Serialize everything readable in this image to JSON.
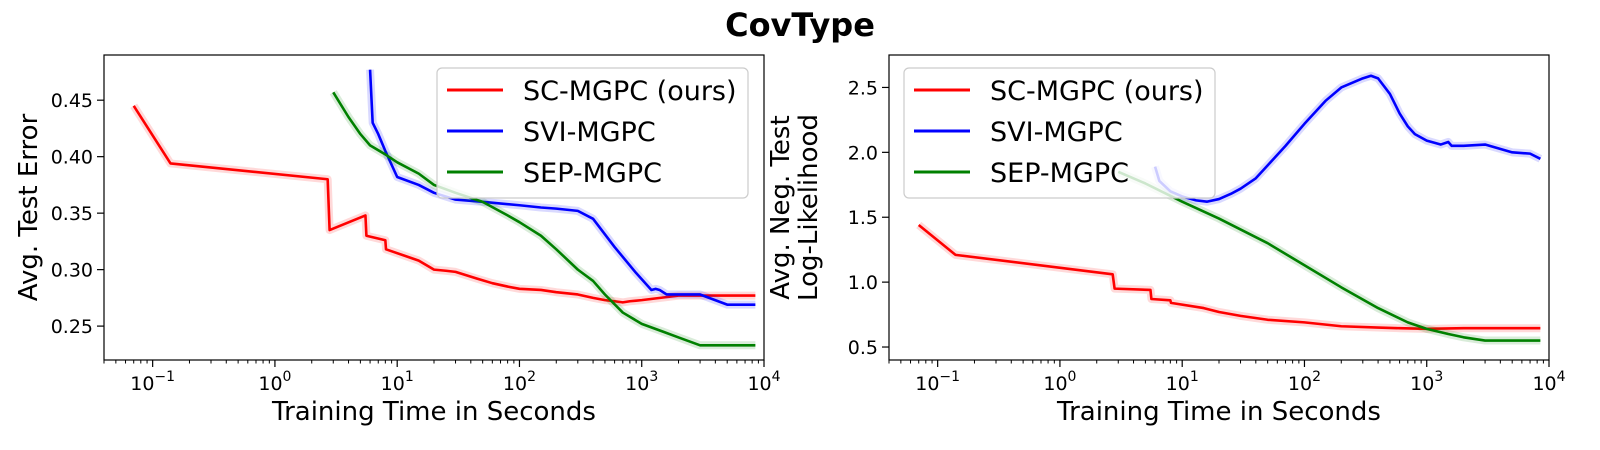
{
  "figure": {
    "title": "CovType"
  },
  "chart_data": [
    {
      "type": "line",
      "title": "",
      "xlabel": "Training Time in Seconds",
      "ylabel": "Avg. Test Error",
      "xscale": "log",
      "xlim": [
        0.04,
        10000
      ],
      "ylim": [
        0.22,
        0.49
      ],
      "xticks": [
        0.1,
        1,
        10,
        100,
        1000,
        10000
      ],
      "xtick_labels": [
        {
          "base": "10",
          "exp": "−1"
        },
        {
          "base": "10",
          "exp": "0"
        },
        {
          "base": "10",
          "exp": "1"
        },
        {
          "base": "10",
          "exp": "2"
        },
        {
          "base": "10",
          "exp": "3"
        },
        {
          "base": "10",
          "exp": "4"
        }
      ],
      "yticks": [
        0.25,
        0.3,
        0.35,
        0.4,
        0.45
      ],
      "ytick_labels": [
        "0.25",
        "0.30",
        "0.35",
        "0.40",
        "0.45"
      ],
      "legend_position": "top-right",
      "series": [
        {
          "name": "SC-MGPC (ours)",
          "color": "#ff0000",
          "x": [
            0.07,
            0.14,
            2.7,
            2.8,
            5.5,
            5.6,
            8.0,
            8.1,
            15,
            20,
            25,
            30,
            45,
            60,
            80,
            100,
            150,
            200,
            300,
            400,
            500,
            600,
            700,
            800,
            1000,
            2000,
            5000,
            8500
          ],
          "y": [
            0.445,
            0.394,
            0.38,
            0.335,
            0.348,
            0.33,
            0.326,
            0.318,
            0.308,
            0.3,
            0.299,
            0.298,
            0.292,
            0.288,
            0.285,
            0.283,
            0.282,
            0.28,
            0.278,
            0.275,
            0.273,
            0.272,
            0.271,
            0.272,
            0.273,
            0.277,
            0.277,
            0.277
          ]
        },
        {
          "name": "SVI-MGPC",
          "color": "#0000ff",
          "x": [
            6.0,
            6.3,
            7.0,
            8.0,
            10,
            15,
            20,
            30,
            50,
            100,
            150,
            200,
            300,
            400,
            600,
            900,
            1200,
            1300,
            1400,
            1600,
            3000,
            5000,
            8500
          ],
          "y": [
            0.477,
            0.43,
            0.42,
            0.405,
            0.382,
            0.375,
            0.368,
            0.362,
            0.36,
            0.357,
            0.355,
            0.354,
            0.352,
            0.345,
            0.32,
            0.297,
            0.282,
            0.283,
            0.282,
            0.278,
            0.278,
            0.269,
            0.269
          ]
        },
        {
          "name": "SEP-MGPC",
          "color": "#008000",
          "x": [
            3.0,
            4.0,
            5.0,
            6.0,
            8.0,
            10,
            15,
            20,
            30,
            50,
            80,
            100,
            150,
            200,
            300,
            400,
            500,
            700,
            1000,
            1500,
            2000,
            3000,
            5000,
            8500
          ],
          "y": [
            0.457,
            0.435,
            0.42,
            0.41,
            0.402,
            0.395,
            0.385,
            0.375,
            0.368,
            0.36,
            0.348,
            0.342,
            0.33,
            0.318,
            0.3,
            0.29,
            0.278,
            0.262,
            0.252,
            0.245,
            0.24,
            0.233,
            0.233,
            0.233
          ]
        }
      ]
    },
    {
      "type": "line",
      "title": "",
      "xlabel": "Training Time in Seconds",
      "ylabel_lines": [
        "Avg. Neg. Test",
        "Log-Likelihood"
      ],
      "xscale": "log",
      "xlim": [
        0.04,
        10000
      ],
      "ylim": [
        0.4,
        2.75
      ],
      "xticks": [
        0.1,
        1,
        10,
        100,
        1000,
        10000
      ],
      "xtick_labels": [
        {
          "base": "10",
          "exp": "−1"
        },
        {
          "base": "10",
          "exp": "0"
        },
        {
          "base": "10",
          "exp": "1"
        },
        {
          "base": "10",
          "exp": "2"
        },
        {
          "base": "10",
          "exp": "3"
        },
        {
          "base": "10",
          "exp": "4"
        }
      ],
      "yticks": [
        0.5,
        1.0,
        1.5,
        2.0,
        2.5
      ],
      "ytick_labels": [
        "0.5",
        "1.0",
        "1.5",
        "2.0",
        "2.5"
      ],
      "legend_position": "top-left",
      "series": [
        {
          "name": "SC-MGPC (ours)",
          "color": "#ff0000",
          "x": [
            0.07,
            0.14,
            2.7,
            2.8,
            5.5,
            5.6,
            8.0,
            8.1,
            15,
            20,
            30,
            50,
            100,
            200,
            400,
            600,
            1000,
            2000,
            5000,
            8500
          ],
          "y": [
            1.44,
            1.21,
            1.06,
            0.95,
            0.94,
            0.87,
            0.86,
            0.84,
            0.8,
            0.77,
            0.74,
            0.71,
            0.69,
            0.66,
            0.65,
            0.645,
            0.64,
            0.645,
            0.645,
            0.645
          ]
        },
        {
          "name": "SVI-MGPC",
          "color": "#0000ff",
          "x": [
            6.0,
            6.5,
            8,
            10,
            13,
            16,
            20,
            25,
            30,
            40,
            50,
            70,
            100,
            150,
            200,
            300,
            350,
            400,
            500,
            600,
            700,
            800,
            1000,
            1300,
            1500,
            1600,
            2000,
            3000,
            5000,
            7000,
            8500
          ],
          "y": [
            1.89,
            1.78,
            1.7,
            1.66,
            1.63,
            1.62,
            1.64,
            1.68,
            1.72,
            1.8,
            1.9,
            2.05,
            2.22,
            2.4,
            2.5,
            2.57,
            2.59,
            2.57,
            2.45,
            2.3,
            2.2,
            2.14,
            2.09,
            2.06,
            2.08,
            2.05,
            2.05,
            2.06,
            2.0,
            1.99,
            1.95
          ]
        },
        {
          "name": "SEP-MGPC",
          "color": "#008000",
          "x": [
            3.0,
            5,
            10,
            20,
            50,
            100,
            200,
            400,
            700,
            1000,
            1500,
            2000,
            3000,
            5000,
            8500
          ],
          "y": [
            1.85,
            1.76,
            1.62,
            1.49,
            1.3,
            1.13,
            0.96,
            0.8,
            0.69,
            0.64,
            0.6,
            0.575,
            0.55,
            0.55,
            0.55
          ]
        }
      ]
    }
  ]
}
